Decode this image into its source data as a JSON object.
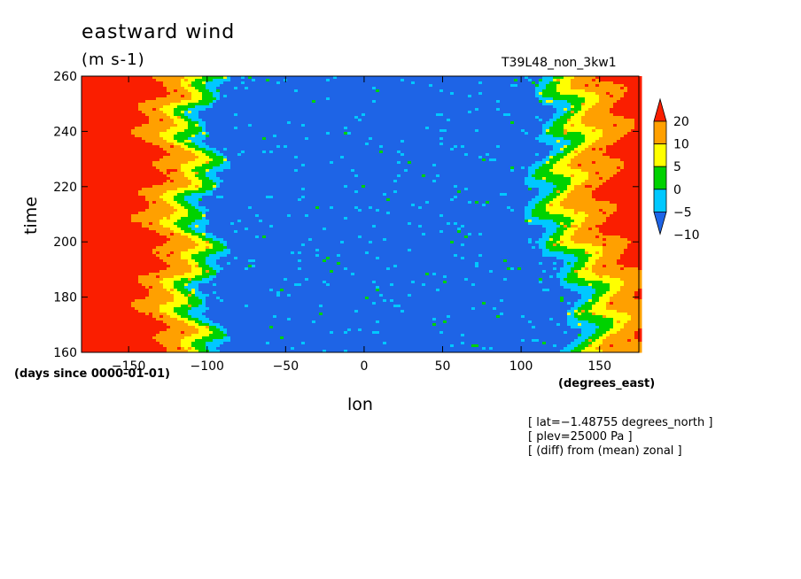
{
  "chart_data": {
    "type": "heatmap",
    "title": "eastward wind",
    "units": "(m s-1)",
    "run_label": "T39L48_non_3kw1",
    "xlabel": "lon",
    "x_units": "(degrees_east)",
    "ylabel": "time",
    "y_units": "(days since 0000-01-01)",
    "xlim": [
      -180,
      175
    ],
    "ylim": [
      160,
      260
    ],
    "x_ticks": [
      -150,
      -100,
      -50,
      0,
      50,
      100,
      150
    ],
    "y_ticks": [
      160,
      180,
      200,
      220,
      240,
      260
    ],
    "colorbar": {
      "levels": [
        -10,
        -5,
        0,
        5,
        10,
        20
      ],
      "labels": [
        "20",
        "10",
        "5",
        "0",
        "−5",
        "−10"
      ],
      "colors": [
        "#1e64e6",
        "#00c8ff",
        "#00d200",
        "#ffff00",
        "#ffa000",
        "#fa1e00"
      ]
    },
    "notes": [
      "[ lat=−1.48755 degrees_north ]",
      "[ plev=25000 Pa ]",
      "[ (diff) from (mean) zonal ]"
    ]
  }
}
